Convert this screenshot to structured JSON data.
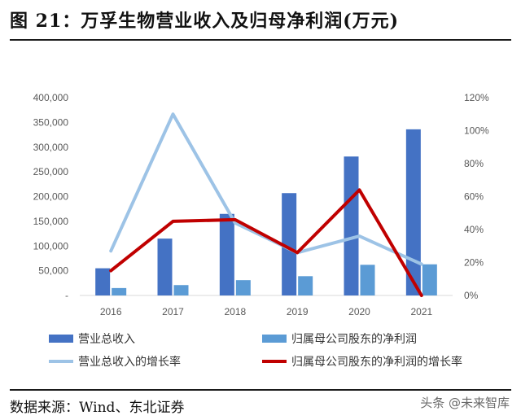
{
  "header": {
    "title": "图 21：万孚生物营业收入及归母净利润(万元)"
  },
  "footer": {
    "source": "数据来源：Wind、东北证券",
    "watermark": "头条 @未来智库"
  },
  "colors": {
    "revenue_bar": "#4472c4",
    "profit_bar": "#5b9bd5",
    "revenue_growth_line": "#9dc3e6",
    "profit_growth_line": "#c00000",
    "axis_text": "#595959"
  },
  "chart_data": {
    "type": "bar",
    "categories": [
      "2016",
      "2017",
      "2018",
      "2019",
      "2020",
      "2021"
    ],
    "series": [
      {
        "name": "营业总收入",
        "type": "bar",
        "axis": "left",
        "values": [
          55000,
          115000,
          165000,
          207000,
          281000,
          336000
        ]
      },
      {
        "name": "归属母公司股东的净利润",
        "type": "bar",
        "axis": "left",
        "values": [
          15000,
          21000,
          31000,
          39000,
          62000,
          63000
        ]
      },
      {
        "name": "营业总收入的增长率",
        "type": "line",
        "axis": "right",
        "values": [
          0.27,
          1.1,
          0.44,
          0.26,
          0.36,
          0.19
        ]
      },
      {
        "name": "归属母公司股东的净利润的增长率",
        "type": "line",
        "axis": "right",
        "values": [
          0.15,
          0.45,
          0.46,
          0.26,
          0.64,
          0.0
        ]
      }
    ],
    "y_left": {
      "ylim": [
        0,
        400000
      ],
      "ticks": [
        "-",
        "50,000",
        "100,000",
        "150,000",
        "200,000",
        "250,000",
        "300,000",
        "350,000",
        "400,000"
      ]
    },
    "y_right": {
      "ylim": [
        0,
        1.2
      ],
      "ticks": [
        "0%",
        "20%",
        "40%",
        "60%",
        "80%",
        "100%",
        "120%"
      ]
    },
    "grid": false,
    "legend_position": "bottom"
  }
}
